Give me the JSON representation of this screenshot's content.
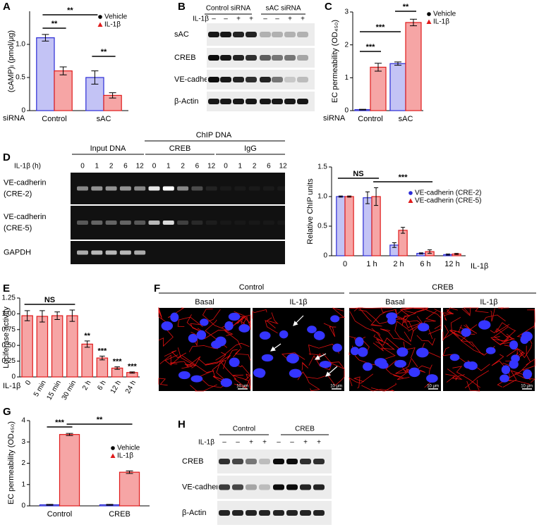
{
  "chart_data": [
    {
      "panel": "A",
      "type": "bar",
      "y_label": "(cAMP)ᵢ (pmol/μg)",
      "x_label": "siRNA",
      "categories": [
        "Control",
        "sAC"
      ],
      "series": [
        {
          "name": "Vehicle",
          "color": "#c3c3f5",
          "edge": "#2b2bd6",
          "values": [
            1.1,
            0.5
          ],
          "errors": [
            0.05,
            0.1
          ]
        },
        {
          "name": "IL-1β",
          "color": "#f6a5a5",
          "edge": "#e01b1b",
          "values": [
            0.6,
            0.23
          ],
          "errors": [
            0.06,
            0.04
          ]
        }
      ],
      "ylim": [
        0,
        1.5
      ],
      "yticks": [
        0,
        0.5,
        {
          "value": 1,
          "label": "1.0"
        }
      ],
      "annotations": [
        "**",
        "**",
        "**"
      ]
    },
    {
      "panel": "C",
      "type": "bar",
      "y_label": "EC permeability (OD₄₅₀)",
      "x_label": "siRNA",
      "categories": [
        "Control",
        "sAC"
      ],
      "series": [
        {
          "name": "Vehicle",
          "color": "#c3c3f5",
          "edge": "#2b2bd6",
          "values": [
            0.03,
            1.43
          ],
          "errors": [
            0.01,
            0.05
          ]
        },
        {
          "name": "IL-1β",
          "color": "#f6a5a5",
          "edge": "#e01b1b",
          "values": [
            1.32,
            2.68
          ],
          "errors": [
            0.12,
            0.1
          ]
        }
      ],
      "ylim": [
        0,
        3
      ],
      "yticks": [
        0,
        1,
        2,
        3
      ],
      "annotations": [
        "***",
        "***",
        "**"
      ]
    },
    {
      "panel": "D",
      "type": "bar",
      "y_label": "Relative ChIP units",
      "x_label": "IL-1β",
      "categories": [
        "0",
        "1 h",
        "2 h",
        "6 h",
        "12 h"
      ],
      "series": [
        {
          "name": "VE-cadherin (CRE-2)",
          "color": "#c3c3f5",
          "edge": "#2b2bd6",
          "values": [
            1.0,
            0.98,
            0.18,
            0.04,
            0.02
          ],
          "errors": [
            0.01,
            0.1,
            0.04,
            0.01,
            0.01
          ]
        },
        {
          "name": "VE-cadherin (CRE-5)",
          "color": "#f6a5a5",
          "edge": "#e01b1b",
          "values": [
            1.0,
            1.0,
            0.43,
            0.07,
            0.03
          ],
          "errors": [
            0.01,
            0.15,
            0.05,
            0.03,
            0.01
          ]
        }
      ],
      "ylim": [
        0,
        1.5
      ],
      "yticks": [
        0,
        0.5,
        {
          "value": 1,
          "label": "1.0"
        },
        1.5
      ],
      "annotations": [
        "NS",
        "***"
      ]
    },
    {
      "panel": "E",
      "type": "bar",
      "y_label": "Luciferase activity",
      "x_label": "IL-1β",
      "categories": [
        "0",
        "5 min",
        "15 min",
        "30 min",
        "2 h",
        "6 h",
        "12 h",
        "24 h"
      ],
      "color": "#f6a5a5",
      "edge": "#e01b1b",
      "values": [
        0.97,
        0.96,
        0.97,
        0.97,
        0.52,
        0.3,
        0.14,
        0.07
      ],
      "errors": [
        0.08,
        0.09,
        0.06,
        0.09,
        0.05,
        0.03,
        0.02,
        0.01
      ],
      "ylim": [
        0,
        1.25
      ],
      "yticks": [
        0,
        0.25,
        {
          "value": 0.5,
          "label": "0.50"
        },
        0.75,
        {
          "value": 1,
          "label": "1.00"
        },
        1.25
      ],
      "annotations": [
        "NS",
        "**",
        "***",
        "***",
        "***"
      ]
    },
    {
      "panel": "G",
      "type": "bar",
      "y_label": "EC permeability (OD₄₅₀)",
      "categories": [
        "Control",
        "CREB"
      ],
      "series": [
        {
          "name": "Vehicle",
          "color": "#c3c3f5",
          "edge": "#2b2bd6",
          "values": [
            0.05,
            0.05
          ],
          "errors": [
            0.02,
            0.02
          ]
        },
        {
          "name": "IL-1β",
          "color": "#f6a5a5",
          "edge": "#e01b1b",
          "values": [
            3.35,
            1.58
          ],
          "errors": [
            0.05,
            0.06
          ]
        }
      ],
      "ylim": [
        0,
        4
      ],
      "yticks": [
        0,
        1,
        2,
        3,
        4
      ],
      "annotations": [
        "***",
        "**"
      ]
    }
  ],
  "blots": [
    {
      "panel": "B",
      "groups": [
        "Control siRNA",
        "sAC siRNA"
      ],
      "treatment": "IL-1β",
      "signs": [
        "–",
        "–",
        "+",
        "+",
        "–",
        "–",
        "+",
        "+"
      ],
      "rows": [
        "sAC",
        "CREB",
        "VE-cadherin",
        "β-Actin"
      ]
    },
    {
      "panel": "H",
      "groups": [
        "Control",
        "CREB"
      ],
      "treatment": "IL-1β",
      "signs": [
        "–",
        "–",
        "+",
        "+",
        "–",
        "–",
        "+",
        "+"
      ],
      "rows": [
        "CREB",
        "VE-cadherin",
        "β-Actin"
      ]
    }
  ],
  "gel": {
    "panel": "D",
    "title": "ChIP DNA",
    "groups": [
      "Input DNA",
      "CREB",
      "IgG"
    ],
    "treatment": "IL-1β (h)",
    "lanes": [
      "0",
      "1",
      "2",
      "6",
      "12",
      "0",
      "1",
      "2",
      "6",
      "12",
      "0",
      "1",
      "2",
      "6",
      "12"
    ],
    "rows": [
      [
        "VE-cadherin",
        "(CRE-2)"
      ],
      [
        "VE-cadherin",
        "(CRE-5)"
      ],
      [
        "GAPDH"
      ]
    ]
  },
  "micrographs": {
    "panel": "F",
    "groups": [
      "Control",
      "CREB"
    ],
    "conditions": [
      "Basal",
      "IL-1β",
      "Basal",
      "IL-1β"
    ],
    "scale_bar": "10 μm"
  }
}
